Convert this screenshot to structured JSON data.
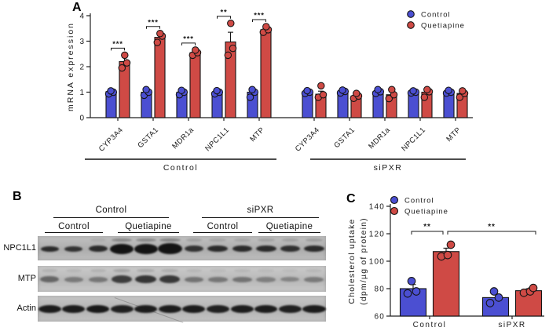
{
  "figure": {
    "background": "#ffffff"
  },
  "colors": {
    "control_blue": "#4b4fd2",
    "quetiapine_red": "#cf4a45",
    "bar_stroke": "#141414",
    "axis": "#222222",
    "text": "#1a1a1a"
  },
  "panels": {
    "a": {
      "letter": "A"
    },
    "b": {
      "letter": "B"
    },
    "c": {
      "letter": "C"
    }
  },
  "chart_data": [
    {
      "id": "panel-a",
      "type": "bar",
      "title": "",
      "ylabel": "mRNA expression",
      "ylim": [
        0,
        4
      ],
      "yticks": [
        0,
        1,
        2,
        3,
        4
      ],
      "legend": [
        {
          "label": "Control",
          "color": "#4b4fd2"
        },
        {
          "label": "Quetiapine",
          "color": "#cf4a45"
        }
      ],
      "groups": [
        {
          "label": "Control",
          "categories": [
            "CYP3A4",
            "GSTA1",
            "MDR1a",
            "NPC1L1",
            "MTP"
          ],
          "series": [
            {
              "name": "Control",
              "means": [
                1.02,
                1.0,
                1.0,
                1.0,
                1.0
              ],
              "err": [
                0.05,
                0.08,
                0.06,
                0.05,
                0.12
              ],
              "points": [
                [
                  0.93,
                  1.0,
                  1.05
                ],
                [
                  0.88,
                  1.0,
                  1.1
                ],
                [
                  0.9,
                  1.0,
                  1.07
                ],
                [
                  0.93,
                  1.0,
                  1.06
                ],
                [
                  0.8,
                  1.0,
                  1.1
                ]
              ]
            },
            {
              "name": "Quetiapine",
              "means": [
                2.2,
                3.15,
                2.55,
                2.97,
                3.45
              ],
              "err": [
                0.17,
                0.12,
                0.07,
                0.38,
                0.08
              ],
              "points": [
                [
                  1.95,
                  2.15,
                  2.45
                ],
                [
                  2.95,
                  3.2,
                  3.3
                ],
                [
                  2.45,
                  2.55,
                  2.65
                ],
                [
                  2.45,
                  2.72,
                  3.7
                ],
                [
                  3.35,
                  3.45,
                  3.57
                ]
              ]
            }
          ],
          "sig": [
            "***",
            "***",
            "***",
            "**",
            "***"
          ]
        },
        {
          "label": "siPXR",
          "categories": [
            "CYP3A4",
            "GSTA1",
            "MDR1a",
            "NPC1L1",
            "MTP"
          ],
          "series": [
            {
              "name": "Control",
              "means": [
                1.02,
                1.03,
                1.03,
                1.02,
                1.03
              ],
              "err": [
                0.05,
                0.05,
                0.05,
                0.05,
                0.05
              ],
              "points": [
                [
                  0.95,
                  1.0,
                  1.06
                ],
                [
                  0.97,
                  1.03,
                  1.08
                ],
                [
                  0.95,
                  1.02,
                  1.1
                ],
                [
                  0.97,
                  1.0,
                  1.05
                ],
                [
                  0.96,
                  1.0,
                  1.07
                ]
              ]
            },
            {
              "name": "Quetiapine",
              "means": [
                0.92,
                0.85,
                0.9,
                1.0,
                0.95
              ],
              "err": [
                0.12,
                0.07,
                0.12,
                0.1,
                0.07
              ],
              "points": [
                [
                  0.8,
                  0.9,
                  1.25
                ],
                [
                  0.76,
                  0.85,
                  0.95
                ],
                [
                  0.75,
                  0.9,
                  1.1
                ],
                [
                  0.8,
                  1.02,
                  1.1
                ],
                [
                  0.8,
                  0.95,
                  1.05
                ]
              ]
            }
          ],
          "sig": [
            null,
            null,
            null,
            null,
            null
          ]
        }
      ]
    },
    {
      "id": "panel-c",
      "type": "bar",
      "title": "",
      "ylabel_lines": [
        "Cholesterol uptake",
        "(dpm/µg of protein)"
      ],
      "ylim": [
        60,
        140
      ],
      "yticks": [
        60,
        80,
        100,
        120,
        140
      ],
      "legend": [
        {
          "label": "Control",
          "color": "#4b4fd2"
        },
        {
          "label": "Quetiapine",
          "color": "#cf4a45"
        }
      ],
      "groups": [
        {
          "label": "Control",
          "series": [
            {
              "name": "Control",
              "mean": 80,
              "err": 3,
              "points": [
                76.5,
                78,
                85.5
              ]
            },
            {
              "name": "Quetiapine",
              "mean": 107,
              "err": 2.5,
              "points": [
                103.5,
                104.5,
                112
              ]
            }
          ]
        },
        {
          "label": "siPXR",
          "series": [
            {
              "name": "Control",
              "mean": 73.5,
              "err": 2.5,
              "points": [
                69.5,
                73.5,
                78
              ]
            },
            {
              "name": "Quetiapine",
              "mean": 78.5,
              "err": 1.5,
              "points": [
                77,
                78,
                80.5
              ]
            }
          ]
        }
      ],
      "significance": [
        {
          "label": "**",
          "between": "Control: Control vs Quetiapine"
        },
        {
          "label": "**",
          "between": "Control Quetiapine vs siPXR"
        }
      ]
    }
  ],
  "blot": {
    "row_labels": [
      "NPC1L1",
      "MTP",
      "Actin"
    ],
    "group_headers": [
      "Control",
      "siPXR"
    ],
    "sub_headers": [
      "Control",
      "Quetiapine",
      "Control",
      "Quetiapine"
    ],
    "rows": [
      {
        "name": "NPC1L1",
        "bg": "#b7b7b7",
        "bands": [
          [
            23,
            5,
            0.85
          ],
          [
            23,
            5,
            0.8
          ],
          [
            24,
            6,
            0.85
          ],
          [
            30,
            11,
            1
          ],
          [
            30,
            11,
            1
          ],
          [
            31,
            12,
            1
          ],
          [
            24,
            6,
            0.8
          ],
          [
            26,
            6,
            0.85
          ],
          [
            25,
            6,
            0.85
          ],
          [
            26,
            6,
            0.85
          ],
          [
            25,
            6,
            0.82
          ],
          [
            26,
            6,
            0.85
          ]
        ],
        "upper": [
          0,
          0,
          0.08,
          0.3,
          0.3,
          0.32,
          0.15,
          0.12,
          0.12,
          0.15,
          0.15,
          0.18
        ]
      },
      {
        "name": "MTP",
        "bg": "#c3c3c3",
        "bands": [
          [
            24,
            6,
            0.5
          ],
          [
            24,
            5,
            0.38
          ],
          [
            24,
            5,
            0.4
          ],
          [
            26,
            8,
            0.75
          ],
          [
            27,
            8,
            0.8
          ],
          [
            26,
            8,
            0.78
          ],
          [
            24,
            5,
            0.42
          ],
          [
            25,
            5,
            0.4
          ],
          [
            25,
            5,
            0.42
          ],
          [
            25,
            5,
            0.35
          ],
          [
            24,
            4,
            0.32
          ],
          [
            25,
            5,
            0.38
          ]
        ],
        "upper": [
          0.1,
          0.08,
          0.1,
          0.18,
          0.15,
          0.12,
          0.08,
          0.06,
          0.08,
          0.06,
          0.05,
          0.08
        ]
      },
      {
        "name": "Actin",
        "bg": "#bdbdbd",
        "bands": [
          [
            29,
            8,
            0.95
          ],
          [
            29,
            8,
            0.95
          ],
          [
            29,
            8,
            0.97
          ],
          [
            29,
            8,
            0.92
          ],
          [
            29,
            8,
            0.95
          ],
          [
            29,
            8,
            0.95
          ],
          [
            29,
            8,
            0.95
          ],
          [
            29,
            8,
            0.93
          ],
          [
            29,
            8,
            0.95
          ],
          [
            29,
            8,
            0.95
          ],
          [
            29,
            8,
            0.93
          ],
          [
            30,
            8,
            0.95
          ]
        ],
        "upper": [
          0,
          0,
          0,
          0,
          0,
          0,
          0,
          0,
          0,
          0,
          0,
          0
        ]
      }
    ]
  }
}
